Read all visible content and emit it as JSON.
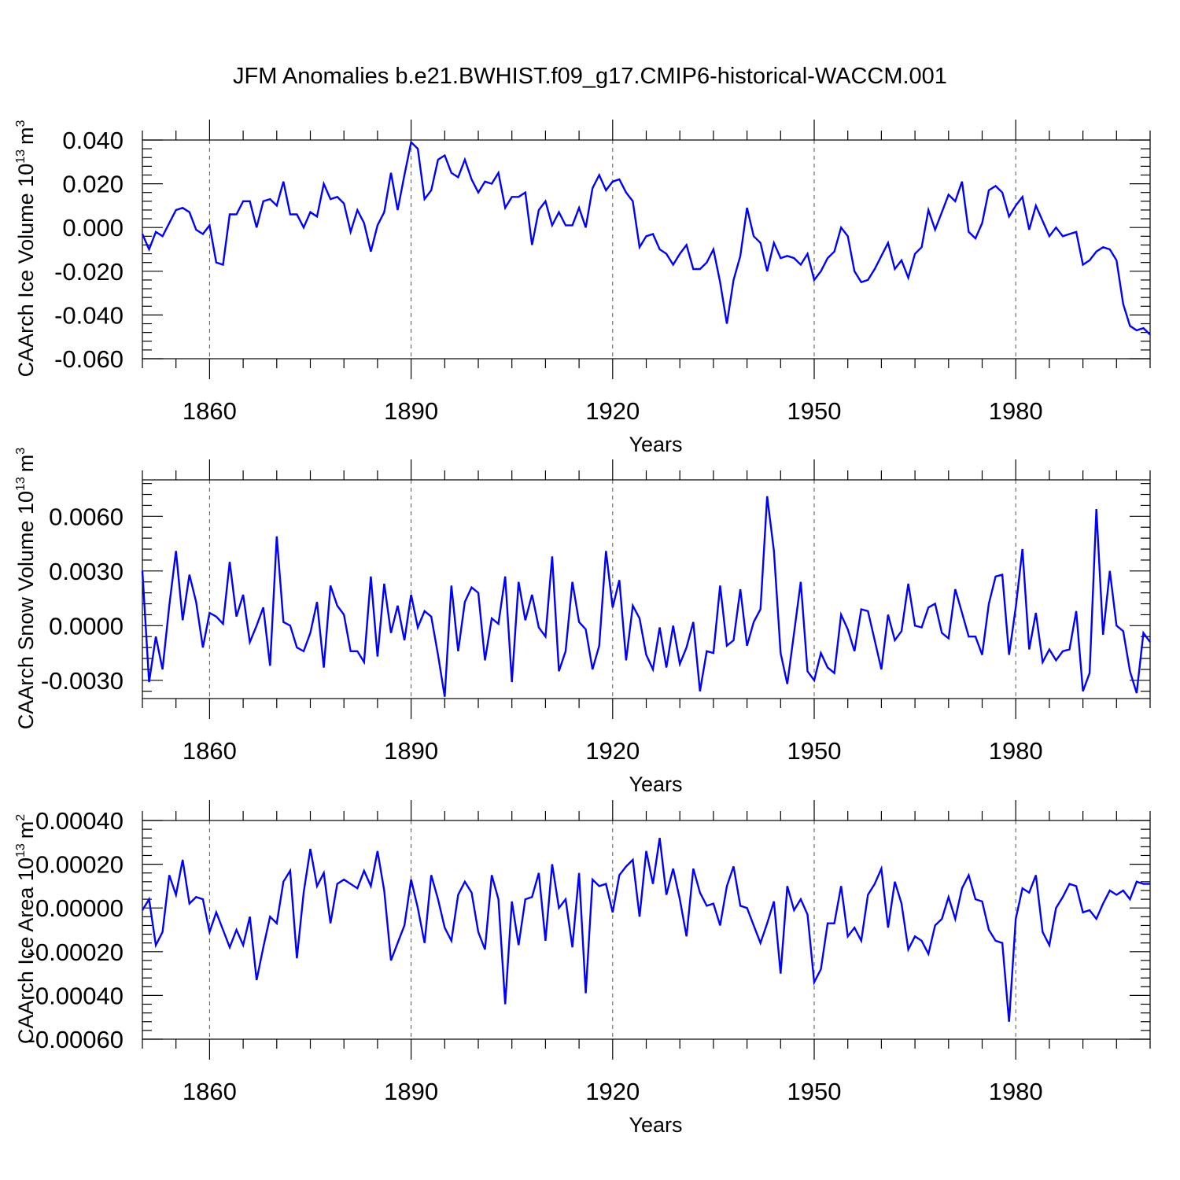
{
  "title": "JFM Anomalies b.e21.BWHIST.f09_g17.CMIP6-historical-WACCM.001",
  "line_color": "#0000ff",
  "chart_data": [
    {
      "type": "line",
      "ylabel": "CAArch Ice Volume 10",
      "ylabel_exp": "13",
      "ylabel_unit": "m",
      "ylabel_unit_exp": "3",
      "xlabel": "Years",
      "xlim": [
        1850,
        2000
      ],
      "ylim": [
        -0.06,
        0.04
      ],
      "xticks": [
        1860,
        1890,
        1920,
        1950,
        1980
      ],
      "xtick_labels": [
        "1860",
        "1890",
        "1920",
        "1950",
        "1980"
      ],
      "yticks": [
        -0.06,
        -0.04,
        -0.02,
        0.0,
        0.02,
        0.04
      ],
      "ytick_labels": [
        "-0.060",
        "-0.040",
        "-0.020",
        "0.000",
        "0.020",
        "0.040"
      ],
      "x_start": 1850,
      "values": [
        -0.003,
        -0.01,
        -0.002,
        -0.004,
        0.002,
        0.008,
        0.009,
        0.007,
        -0.001,
        -0.003,
        0.001,
        -0.016,
        -0.017,
        0.006,
        0.006,
        0.012,
        0.012,
        0.0,
        0.012,
        0.013,
        0.01,
        0.021,
        0.006,
        0.006,
        0.0,
        0.007,
        0.005,
        0.02,
        0.013,
        0.014,
        0.011,
        -0.002,
        0.008,
        0.002,
        -0.011,
        0.001,
        0.007,
        0.025,
        0.008,
        0.024,
        0.039,
        0.036,
        0.013,
        0.017,
        0.031,
        0.033,
        0.025,
        0.023,
        0.031,
        0.022,
        0.016,
        0.021,
        0.02,
        0.025,
        0.009,
        0.014,
        0.014,
        0.016,
        -0.008,
        0.008,
        0.012,
        0.001,
        0.007,
        0.001,
        0.001,
        0.009,
        0.0,
        0.018,
        0.024,
        0.017,
        0.021,
        0.022,
        0.016,
        0.012,
        -0.009,
        -0.004,
        -0.003,
        -0.01,
        -0.012,
        -0.017,
        -0.012,
        -0.008,
        -0.019,
        -0.019,
        -0.016,
        -0.01,
        -0.025,
        -0.044,
        -0.024,
        -0.013,
        0.009,
        -0.004,
        -0.007,
        -0.02,
        -0.007,
        -0.014,
        -0.013,
        -0.014,
        -0.017,
        -0.012,
        -0.024,
        -0.02,
        -0.014,
        -0.011,
        0.0,
        -0.004,
        -0.02,
        -0.025,
        -0.024,
        -0.019,
        -0.013,
        -0.007,
        -0.019,
        -0.015,
        -0.023,
        -0.012,
        -0.009,
        0.008,
        -0.001,
        0.007,
        0.015,
        0.012,
        0.021,
        -0.002,
        -0.005,
        0.002,
        0.017,
        0.019,
        0.016,
        0.005,
        0.01,
        0.014,
        -0.001,
        0.01,
        0.003,
        -0.004,
        0.0,
        -0.004,
        -0.003,
        -0.002,
        -0.017,
        -0.015,
        -0.011,
        -0.009,
        -0.01,
        -0.015,
        -0.035,
        -0.045,
        -0.047,
        -0.046,
        -0.049
      ]
    },
    {
      "type": "line",
      "ylabel": "CAArch Snow Volume 10",
      "ylabel_exp": "13",
      "ylabel_unit": "m",
      "ylabel_unit_exp": "3",
      "xlabel": "Years",
      "xlim": [
        1850,
        2000
      ],
      "ylim": [
        -0.004,
        0.008
      ],
      "xticks": [
        1860,
        1890,
        1920,
        1950,
        1980
      ],
      "xtick_labels": [
        "1860",
        "1890",
        "1920",
        "1950",
        "1980"
      ],
      "yticks": [
        -0.003,
        0.0,
        0.003,
        0.006
      ],
      "ytick_labels": [
        "-0.0030",
        "0.0000",
        "0.0030",
        "0.0060"
      ],
      "x_start": 1850,
      "values": [
        0.003,
        -0.0031,
        -0.0006,
        -0.0024,
        0.0011,
        0.0041,
        0.0003,
        0.0028,
        0.0013,
        -0.0012,
        0.0007,
        0.0005,
        0.0001,
        0.0035,
        0.0005,
        0.0017,
        -0.0009,
        0.0,
        0.001,
        -0.0022,
        0.0049,
        0.0002,
        0.0,
        -0.0012,
        -0.0014,
        -0.0004,
        0.0013,
        -0.0023,
        0.0022,
        0.0011,
        0.0006,
        -0.0014,
        -0.0014,
        -0.002,
        0.0027,
        -0.0017,
        0.0023,
        -0.0004,
        0.0011,
        -0.0008,
        0.0017,
        -0.0001,
        0.0008,
        0.0005,
        -0.0016,
        -0.0039,
        0.0022,
        -0.0014,
        0.0013,
        0.0021,
        0.0018,
        -0.0019,
        0.0004,
        0.0001,
        0.0027,
        -0.0031,
        0.0024,
        0.0003,
        0.0017,
        -0.0001,
        -0.0006,
        0.0038,
        -0.0025,
        -0.0014,
        0.0024,
        0.0002,
        -0.0002,
        -0.0024,
        -0.0011,
        0.0041,
        0.001,
        0.0025,
        -0.0019,
        0.0011,
        0.0004,
        -0.0016,
        -0.0024,
        -0.0001,
        -0.0023,
        0.0,
        -0.0021,
        -0.0012,
        0.0002,
        -0.0036,
        -0.0014,
        -0.0015,
        0.0022,
        -0.0011,
        -0.0008,
        0.002,
        -0.0011,
        0.0002,
        0.0009,
        0.0071,
        0.0041,
        -0.0015,
        -0.0032,
        -0.0004,
        0.0024,
        -0.0025,
        -0.003,
        -0.0015,
        -0.0023,
        -0.0026,
        0.0006,
        -0.0002,
        -0.0014,
        0.0009,
        0.0008,
        -0.0008,
        -0.0024,
        0.0006,
        -0.0008,
        -0.0003,
        0.0023,
        0.0,
        -0.0001,
        0.001,
        0.0012,
        -0.0004,
        -0.0007,
        0.002,
        0.0007,
        -0.0006,
        -0.0006,
        -0.0016,
        0.0012,
        0.0027,
        0.0028,
        -0.0016,
        0.001,
        0.0042,
        -0.0013,
        0.0007,
        -0.002,
        -0.0013,
        -0.0019,
        -0.0014,
        -0.0013,
        0.0008,
        -0.0036,
        -0.0026,
        0.0064,
        -0.0005,
        0.003,
        0.0,
        -0.0003,
        -0.0025,
        -0.0037,
        -0.0004,
        -0.0009
      ]
    },
    {
      "type": "line",
      "ylabel": "CAArch Ice Area 10",
      "ylabel_exp": "13",
      "ylabel_unit": "m",
      "ylabel_unit_exp": "2",
      "xlabel": "Years",
      "xlim": [
        1850,
        2000
      ],
      "ylim": [
        -0.0006,
        0.0004
      ],
      "xticks": [
        1860,
        1890,
        1920,
        1950,
        1980
      ],
      "xtick_labels": [
        "1860",
        "1890",
        "1920",
        "1950",
        "1980"
      ],
      "yticks": [
        -0.0006,
        -0.0004,
        -0.0002,
        0.0,
        0.0002,
        0.0004
      ],
      "ytick_labels": [
        "-0.00060",
        "-0.00040",
        "-0.00020",
        "0.00000",
        "0.00020",
        "0.00040"
      ],
      "x_start": 1850,
      "values": [
        -1e-05,
        4e-05,
        -0.00017,
        -0.00011,
        0.00015,
        6e-05,
        0.00022,
        2e-05,
        5e-05,
        4e-05,
        -0.00011,
        -2e-05,
        -0.0001,
        -0.00018,
        -0.0001,
        -0.00017,
        -4e-05,
        -0.00033,
        -0.00018,
        -4e-05,
        -7e-05,
        0.00012,
        0.00017,
        -0.00023,
        7e-05,
        0.00027,
        0.0001,
        0.00016,
        -7e-05,
        0.00011,
        0.00013,
        0.00011,
        9e-05,
        0.00017,
        0.0001,
        0.00026,
        8e-05,
        -0.00024,
        -0.00016,
        -8e-05,
        0.00013,
        0.0,
        -0.00016,
        0.00015,
        4e-05,
        -9e-05,
        -0.00015,
        6e-05,
        0.00012,
        7e-05,
        -0.00011,
        -0.00019,
        0.00015,
        4e-05,
        -0.00044,
        3e-05,
        -0.00017,
        4e-05,
        5e-05,
        0.00016,
        -0.00015,
        0.0002,
        0.0,
        4e-05,
        -0.00018,
        0.00016,
        -0.00039,
        0.00013,
        0.0001,
        0.00011,
        -2e-05,
        0.00015,
        0.00019,
        0.00022,
        -4e-05,
        0.00026,
        0.00011,
        0.00032,
        6e-05,
        0.00018,
        4e-05,
        -0.00013,
        0.00018,
        7e-05,
        1e-05,
        2e-05,
        -8e-05,
        0.0001,
        0.00019,
        1e-05,
        0.0,
        -8e-05,
        -0.00016,
        -7e-05,
        3e-05,
        -0.0003,
        0.0001,
        -1e-05,
        4e-05,
        -3e-05,
        -0.00034,
        -0.00028,
        -7e-05,
        -7e-05,
        0.0001,
        -0.00013,
        -9e-05,
        -0.00015,
        6e-05,
        0.00011,
        0.00018,
        -9e-05,
        0.00012,
        2e-05,
        -0.00019,
        -0.00013,
        -0.00015,
        -0.00021,
        -8e-05,
        -5e-05,
        5e-05,
        -5e-05,
        9e-05,
        0.00015,
        4e-05,
        3e-05,
        -0.0001,
        -0.00015,
        -0.00016,
        -0.00052,
        -5e-05,
        9e-05,
        7e-05,
        0.00015,
        -0.00011,
        -0.00017,
        0.0,
        5e-05,
        0.00011,
        0.0001,
        -2e-05,
        -1e-05,
        -5e-05,
        2e-05,
        8e-05,
        6e-05,
        8e-05,
        4e-05,
        0.00012,
        0.00011,
        0.00011
      ]
    }
  ]
}
